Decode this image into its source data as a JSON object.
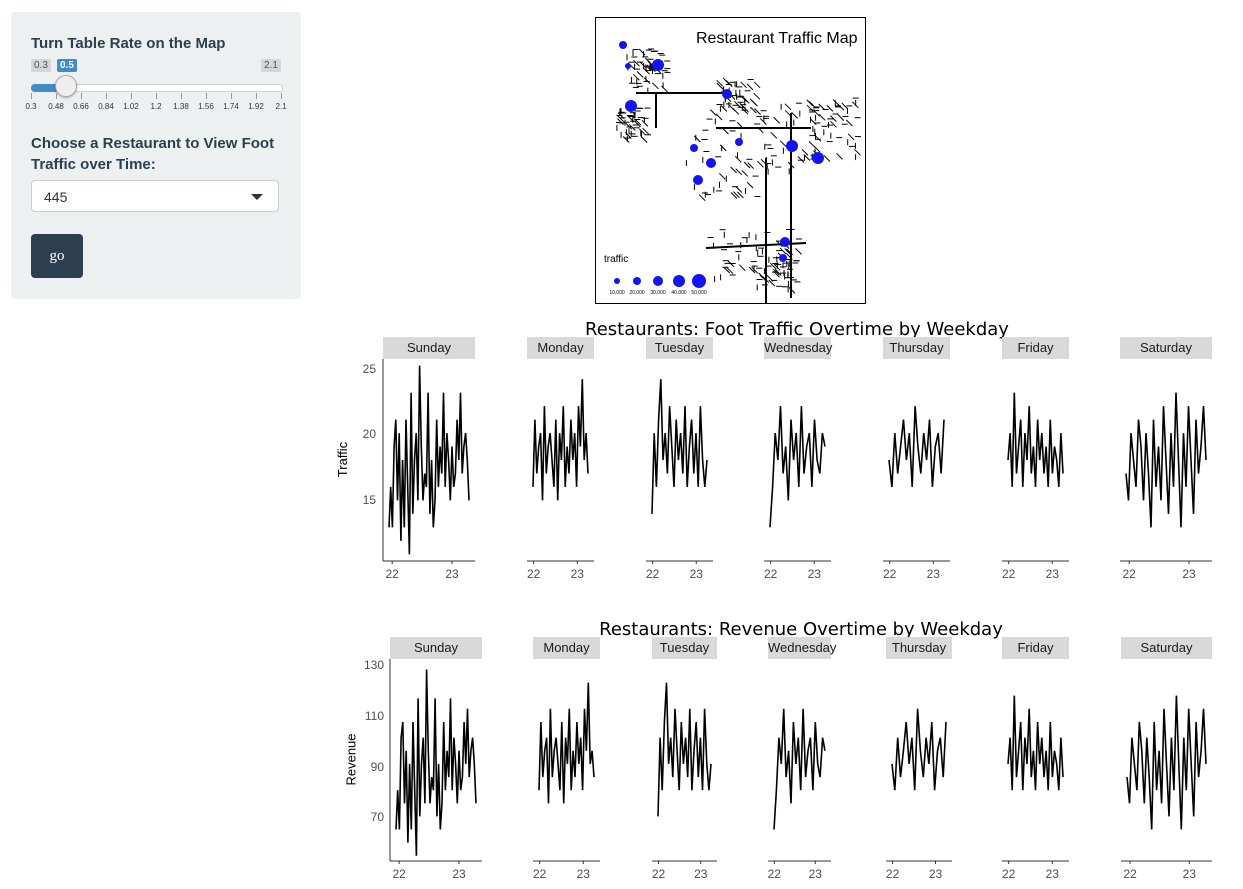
{
  "sidebar": {
    "slider_label": "Turn Table Rate on the Map",
    "slider_min": "0.3",
    "slider_value": "0.5",
    "slider_max": "2.1",
    "slider_ticks": [
      "0.3",
      "0.48",
      "0.66",
      "0.84",
      "1.02",
      "1.2",
      "1.38",
      "1.56",
      "1.74",
      "1.92",
      "2.1"
    ],
    "select_label": "Choose a Restaurant to View Foot Traffic over Time:",
    "select_value": "445",
    "go_label": "go"
  },
  "map": {
    "title": "Restaurant Traffic Map",
    "legend_title": "traffic",
    "legend_items": [
      "10,000",
      "20,000",
      "30,000",
      "40,000",
      "50,000"
    ],
    "point_color": "#1414f0"
  },
  "traffic_chart": {
    "title": "Restaurants: Foot Traffic Overtime by Weekday",
    "ylabel": "Traffic",
    "yticks": [
      "25",
      "20",
      "15"
    ],
    "days": [
      "Sunday",
      "Monday",
      "Tuesday",
      "Wednesday",
      "Thursday",
      "Friday",
      "Saturday"
    ],
    "xticks": [
      "22",
      "23"
    ]
  },
  "revenue_chart": {
    "title": "Restaurants: Revenue Overtime by Weekday",
    "ylabel": "Revenue",
    "yticks": [
      "130",
      "110",
      "90",
      "70"
    ],
    "days": [
      "Sunday",
      "Monday",
      "Tuesday",
      "Wednesday",
      "Thursday",
      "Friday",
      "Saturday"
    ],
    "xticks": [
      "22",
      "23"
    ]
  },
  "chart_data": [
    {
      "type": "line",
      "title": "Restaurants: Foot Traffic Overtime by Weekday",
      "ylabel": "Traffic",
      "ylim": [
        10.5,
        25.5
      ],
      "series": [
        {
          "name": "Sunday",
          "values": [
            13,
            16,
            13,
            19,
            21,
            15,
            20,
            12,
            18,
            13,
            21,
            16,
            11,
            23,
            14,
            18,
            20,
            15,
            25,
            19,
            15,
            17,
            16,
            23,
            14,
            18,
            13,
            15,
            21,
            16,
            19,
            17,
            23,
            16,
            20,
            18,
            15,
            19,
            16,
            17,
            21,
            18,
            23,
            17,
            19,
            20,
            18,
            15
          ]
        },
        {
          "name": "Monday",
          "values": [
            16,
            21,
            17,
            19,
            20,
            15,
            22,
            17,
            19,
            20,
            18,
            16,
            21,
            15,
            20,
            18,
            22,
            16,
            19,
            17,
            21,
            18,
            20,
            16,
            22,
            19,
            24,
            18,
            20,
            17
          ]
        },
        {
          "name": "Tuesday",
          "values": [
            14,
            20,
            16,
            21,
            24,
            18,
            20,
            17,
            22,
            19,
            16,
            21,
            18,
            20,
            17,
            22,
            16,
            19,
            21,
            17,
            20,
            16,
            22,
            18,
            16,
            18
          ]
        },
        {
          "name": "Wednesday",
          "values": [
            13,
            16,
            20,
            18,
            22,
            17,
            19,
            15,
            21,
            18,
            20,
            16,
            22,
            17,
            19,
            20,
            16,
            21,
            18,
            17,
            20,
            19
          ]
        },
        {
          "name": "Thursday",
          "values": [
            18,
            16,
            20,
            17,
            19,
            21,
            18,
            20,
            16,
            22,
            19,
            17,
            20,
            18,
            21,
            16,
            19,
            20,
            17,
            21
          ]
        },
        {
          "name": "Friday",
          "values": [
            18,
            20,
            16,
            23,
            17,
            19,
            21,
            16,
            20,
            18,
            22,
            17,
            19,
            16,
            21,
            18,
            20,
            17,
            19,
            16,
            21,
            17,
            19,
            18,
            16,
            20,
            17
          ]
        },
        {
          "name": "Saturday",
          "values": [
            17,
            15,
            20,
            18,
            16,
            21,
            19,
            15,
            20,
            17,
            13,
            21,
            16,
            19,
            15,
            22,
            18,
            14,
            20,
            16,
            23,
            18,
            13,
            20,
            16,
            22,
            18,
            14,
            21,
            17,
            19,
            22,
            18
          ]
        }
      ]
    },
    {
      "type": "line",
      "title": "Restaurants: Revenue Overtime by Weekday",
      "ylabel": "Revenue",
      "ylim": [
        55,
        132
      ],
      "series": [
        {
          "name": "Sunday",
          "values": [
            67,
            82,
            67,
            102,
            108,
            77,
            97,
            62,
            92,
            67,
            108,
            82,
            57,
            117,
            72,
            92,
            102,
            77,
            128,
            97,
            77,
            87,
            82,
            117,
            72,
            92,
            67,
            77,
            108,
            82,
            97,
            87,
            117,
            82,
            102,
            92,
            77,
            97,
            82,
            87,
            108,
            92,
            113,
            87,
            97,
            102,
            92,
            77
          ]
        },
        {
          "name": "Monday",
          "values": [
            82,
            108,
            87,
            97,
            102,
            77,
            113,
            87,
            97,
            102,
            92,
            82,
            108,
            77,
            102,
            92,
            113,
            82,
            97,
            87,
            108,
            92,
            102,
            82,
            113,
            97,
            123,
            92,
            97,
            87
          ]
        },
        {
          "name": "Tuesday",
          "values": [
            72,
            102,
            82,
            108,
            123,
            92,
            102,
            87,
            113,
            97,
            82,
            108,
            92,
            102,
            87,
            113,
            82,
            97,
            108,
            87,
            102,
            82,
            113,
            92,
            82,
            92
          ]
        },
        {
          "name": "Wednesday",
          "values": [
            67,
            82,
            102,
            92,
            113,
            87,
            97,
            77,
            108,
            92,
            102,
            82,
            113,
            87,
            97,
            102,
            82,
            108,
            92,
            87,
            102,
            97
          ]
        },
        {
          "name": "Thursday",
          "values": [
            92,
            82,
            102,
            87,
            97,
            108,
            92,
            102,
            82,
            113,
            97,
            87,
            102,
            92,
            108,
            82,
            97,
            102,
            87,
            108
          ]
        },
        {
          "name": "Friday",
          "values": [
            92,
            102,
            82,
            118,
            87,
            97,
            108,
            82,
            102,
            92,
            113,
            87,
            97,
            82,
            108,
            92,
            102,
            87,
            97,
            82,
            108,
            87,
            97,
            92,
            82,
            102,
            87
          ]
        },
        {
          "name": "Saturday",
          "values": [
            87,
            77,
            102,
            92,
            82,
            108,
            97,
            77,
            102,
            87,
            67,
            108,
            82,
            97,
            77,
            113,
            92,
            72,
            102,
            82,
            118,
            92,
            67,
            102,
            82,
            113,
            92,
            72,
            108,
            87,
            97,
            113,
            92
          ]
        }
      ]
    }
  ]
}
